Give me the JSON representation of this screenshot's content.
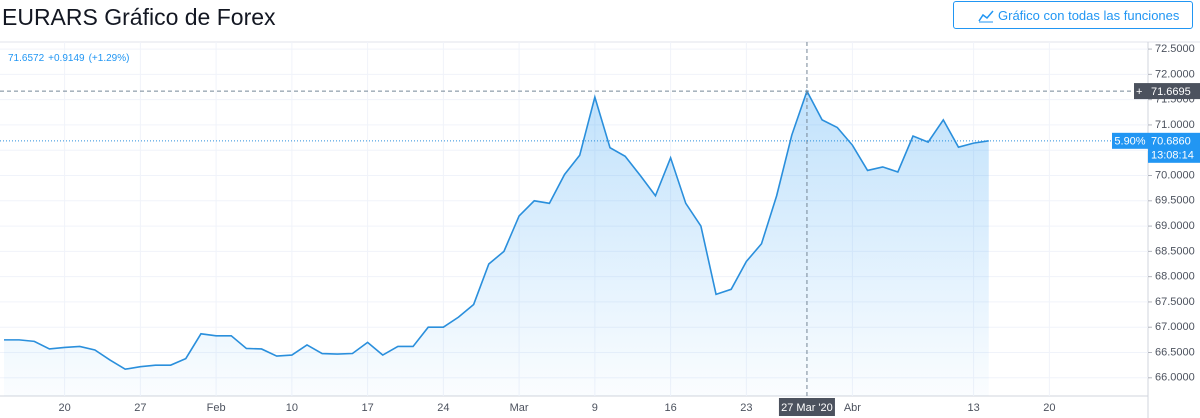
{
  "header": {
    "title": "EURARS Gráfico de Forex",
    "button": "Gráfico con todas las funciones"
  },
  "chart_data": {
    "type": "area",
    "legend_text": {
      "price": "71.6572",
      "change": "+0.9149",
      "change_pct": "(+1.29%)"
    },
    "last_info": {
      "change_pct": "5.90%",
      "countdown": "13:08:14"
    },
    "color": "#2a8fdc",
    "categories": [
      null,
      null,
      null,
      null,
      "20",
      null,
      null,
      null,
      null,
      "27",
      null,
      null,
      null,
      null,
      "Feb",
      null,
      null,
      null,
      null,
      "10",
      null,
      null,
      null,
      null,
      "17",
      null,
      null,
      null,
      null,
      "24",
      null,
      null,
      null,
      null,
      "Mar",
      null,
      null,
      null,
      null,
      "9",
      null,
      null,
      null,
      null,
      "16",
      null,
      null,
      null,
      null,
      "23",
      null,
      null,
      null,
      "27 Mar '20",
      null,
      null,
      "Abr",
      null,
      null,
      null,
      null,
      null,
      null,
      null,
      "13",
      null,
      null,
      null,
      null,
      "20"
    ],
    "values": [
      66.75,
      66.75,
      66.72,
      66.57,
      66.6,
      66.62,
      66.55,
      66.35,
      66.17,
      66.22,
      66.25,
      66.25,
      66.38,
      66.87,
      66.83,
      66.83,
      66.58,
      66.57,
      66.43,
      66.45,
      66.65,
      66.48,
      66.47,
      66.48,
      66.7,
      66.45,
      66.62,
      66.62,
      67.0,
      67.0,
      67.2,
      67.45,
      68.25,
      68.5,
      69.2,
      69.5,
      69.45,
      70.02,
      70.4,
      71.55,
      70.55,
      70.38,
      70.0,
      69.6,
      70.35,
      69.45,
      69.0,
      67.65,
      67.75,
      68.3,
      68.65,
      69.6,
      70.8,
      71.6695,
      71.1,
      70.95,
      70.6,
      70.1,
      70.17,
      70.07,
      70.78,
      70.66,
      71.1,
      70.56,
      70.64,
      70.686,
      null,
      null,
      null,
      null
    ],
    "value_labels": [
      null,
      null,
      null,
      null,
      null,
      null,
      null,
      null,
      null,
      null,
      null,
      null,
      null,
      null,
      null,
      null,
      null,
      null,
      null,
      null,
      null,
      null,
      null,
      null,
      null,
      null,
      null,
      null,
      null,
      null,
      null,
      null,
      null,
      null,
      null,
      null,
      null,
      null,
      null,
      null,
      null,
      null,
      null,
      null,
      null,
      null,
      null,
      null,
      null,
      null,
      null,
      null,
      null,
      null,
      null,
      null,
      null,
      null,
      null,
      null,
      null,
      null,
      null,
      null,
      null,
      "70.6860",
      null,
      null,
      null,
      null
    ],
    "ylim": [
      65.64,
      72.64
    ],
    "yticks": [
      {
        "value": 66,
        "label": "66.0000"
      },
      {
        "value": 66.5,
        "label": "66.5000"
      },
      {
        "value": 67,
        "label": "67.0000"
      },
      {
        "value": 67.5,
        "label": "67.5000"
      },
      {
        "value": 68,
        "label": "68.0000"
      },
      {
        "value": 68.5,
        "label": "68.5000"
      },
      {
        "value": 69,
        "label": "69.0000"
      },
      {
        "value": 69.5,
        "label": "69.5000"
      },
      {
        "value": 70,
        "label": "70.0000"
      },
      {
        "value": 70.5,
        "label": "70.5000"
      },
      {
        "value": 71,
        "label": "71.0000"
      },
      {
        "value": 71.5,
        "label": "71.5000"
      },
      {
        "value": 72,
        "label": "72.0000"
      },
      {
        "value": 72.5,
        "label": "72.5000"
      }
    ],
    "grid": true
  }
}
